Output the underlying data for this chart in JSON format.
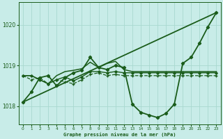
{
  "title": "Graphe pression niveau de la mer (hPa)",
  "background_color": "#c8ece8",
  "grid_color": "#a8d8d0",
  "line_color": "#1a5c1a",
  "text_color": "#1a5c1a",
  "xlim": [
    -0.5,
    23.5
  ],
  "ylim": [
    1017.55,
    1020.55
  ],
  "yticks": [
    1018,
    1019,
    1020
  ],
  "xticks": [
    0,
    1,
    2,
    3,
    4,
    5,
    6,
    7,
    8,
    9,
    10,
    11,
    12,
    13,
    14,
    15,
    16,
    17,
    18,
    19,
    20,
    21,
    22,
    23
  ],
  "series": [
    {
      "x": [
        0,
        23
      ],
      "y": [
        1018.1,
        1020.3
      ],
      "style": "-",
      "marker": null,
      "lw": 1.3,
      "ms": 0
    },
    {
      "x": [
        0,
        1,
        2,
        3,
        4,
        5,
        6,
        7,
        8,
        9,
        10,
        11,
        12,
        13,
        14,
        15,
        16,
        17,
        18,
        19,
        20,
        21,
        22,
        23
      ],
      "y": [
        1018.1,
        1018.35,
        1018.7,
        1018.75,
        1018.5,
        1018.7,
        1018.82,
        1018.88,
        1019.2,
        1018.95,
        1018.9,
        1019.0,
        1018.95,
        1018.05,
        1017.85,
        1017.78,
        1017.72,
        1017.82,
        1018.05,
        1019.05,
        1019.2,
        1019.55,
        1019.95,
        1020.3
      ],
      "style": "-",
      "marker": "D",
      "lw": 1.3,
      "ms": 2.2
    },
    {
      "x": [
        0,
        1,
        2,
        3,
        4,
        5,
        6,
        7,
        8,
        9,
        10,
        11,
        12,
        13,
        14,
        15,
        16,
        17,
        18,
        19,
        20,
        21,
        22,
        23
      ],
      "y": [
        1018.75,
        1018.75,
        1018.65,
        1018.55,
        1018.75,
        1018.85,
        1018.88,
        1018.92,
        1019.08,
        1018.95,
        1019.05,
        1019.1,
        1018.9,
        1018.85,
        1018.85,
        1018.85,
        1018.85,
        1018.85,
        1018.85,
        1018.85,
        1018.85,
        1018.85,
        1018.85,
        1018.85
      ],
      "style": "-",
      "marker": null,
      "lw": 1.1,
      "ms": 0
    },
    {
      "x": [
        0,
        1,
        2,
        3,
        4,
        5,
        6,
        7,
        8,
        9,
        10,
        11,
        12,
        13,
        14,
        15,
        16,
        17,
        18,
        19,
        20,
        21,
        22,
        23
      ],
      "y": [
        1018.75,
        1018.75,
        1018.65,
        1018.55,
        1018.65,
        1018.72,
        1018.62,
        1018.72,
        1018.85,
        1018.85,
        1018.82,
        1018.85,
        1018.82,
        1018.82,
        1018.82,
        1018.82,
        1018.82,
        1018.82,
        1018.82,
        1018.82,
        1018.82,
        1018.82,
        1018.82,
        1018.82
      ],
      "style": "-",
      "marker": "D",
      "lw": 1.0,
      "ms": 1.8
    },
    {
      "x": [
        0,
        1,
        2,
        3,
        4,
        5,
        6,
        7,
        8,
        9,
        10,
        11,
        12,
        13,
        14,
        15,
        16,
        17,
        18,
        19,
        20,
        21,
        22,
        23
      ],
      "y": [
        1018.75,
        1018.65,
        1018.7,
        1018.55,
        1018.65,
        1018.6,
        1018.55,
        1018.65,
        1018.78,
        1018.82,
        1018.75,
        1018.78,
        1018.75,
        1018.75,
        1018.75,
        1018.75,
        1018.75,
        1018.75,
        1018.75,
        1018.75,
        1018.75,
        1018.75,
        1018.75,
        1018.75
      ],
      "style": "--",
      "marker": "+",
      "lw": 0.9,
      "ms": 3.0
    }
  ]
}
